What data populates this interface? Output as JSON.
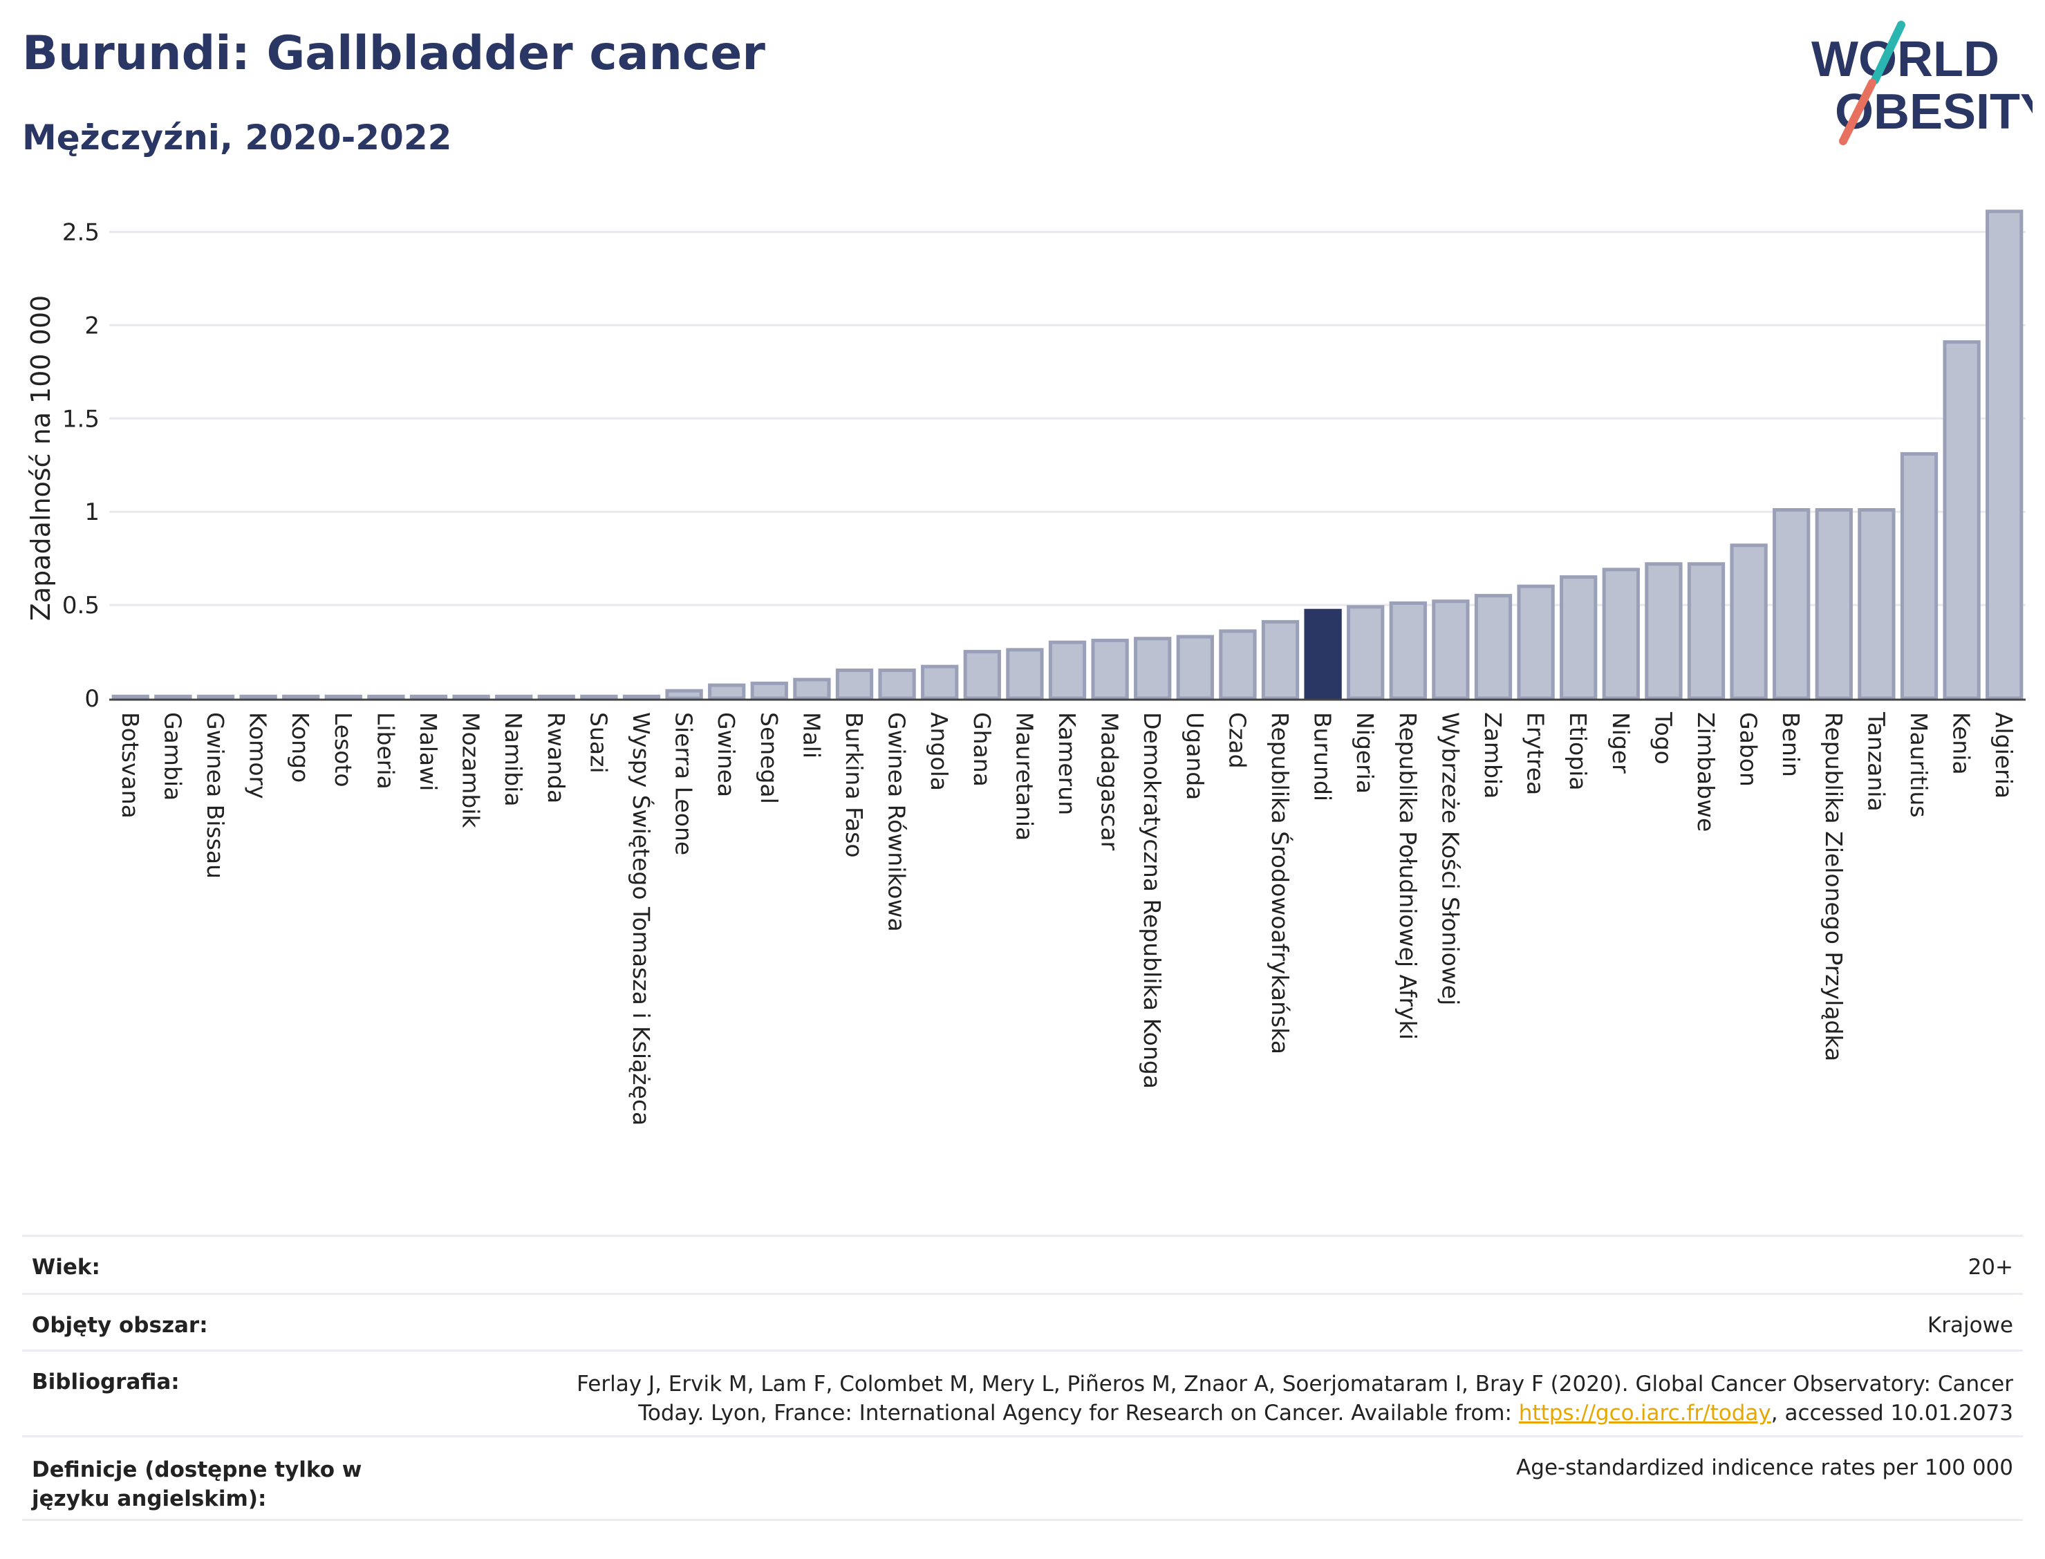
{
  "header": {
    "title": "Burundi: Gallbladder cancer",
    "subtitle": "Mężczyźni, 2020-2022",
    "logo_line1": "WORLD",
    "logo_line2": "OBESITY"
  },
  "colors": {
    "title": "#2a3663",
    "bar": "#bcc1d1",
    "bar_stroke": "#9aa0b8",
    "highlight": "#2a3663",
    "logo_teal": "#2bb5b0",
    "logo_coral": "#e8705f"
  },
  "chart_data": {
    "type": "bar",
    "ylabel": "Zapadalność na 100 000",
    "ylim": [
      0,
      2.65
    ],
    "yticks": [
      0,
      0.5,
      1,
      1.5,
      2,
      2.5
    ],
    "ytick_labels": [
      "0",
      "0.5",
      "1",
      "1.5",
      "2",
      "2.5"
    ],
    "grid": true,
    "highlight": "Burundi",
    "categories": [
      "Botsvana",
      "Gambia",
      "Gwinea Bissau",
      "Komory",
      "Kongo",
      "Lesoto",
      "Liberia",
      "Malawi",
      "Mozambik",
      "Namibia",
      "Rwanda",
      "Suazi",
      "Wyspy Świętego Tomasza i Książęca",
      "Sierra Leone",
      "Gwinea",
      "Senegal",
      "Mali",
      "Burkina Faso",
      "Gwinea Równikowa",
      "Angola",
      "Ghana",
      "Mauretania",
      "Kamerun",
      "Madagascar",
      "Demokratyczna Republika Konga",
      "Uganda",
      "Czad",
      "Republika Środowoafrykańska",
      "Burundi",
      "Nigeria",
      "Republika Południowej Afryki",
      "Wybrzeże Kości Słoniowej",
      "Zambia",
      "Erytrea",
      "Etiopia",
      "Niger",
      "Togo",
      "Zimbabwe",
      "Gabon",
      "Benin",
      "Republika Zielonego Przylądka",
      "Tanzania",
      "Mauritius",
      "Kenia",
      "Algieria"
    ],
    "values": [
      0.01,
      0.01,
      0.01,
      0.01,
      0.01,
      0.01,
      0.01,
      0.01,
      0.01,
      0.01,
      0.01,
      0.01,
      0.01,
      0.04,
      0.07,
      0.08,
      0.1,
      0.15,
      0.15,
      0.17,
      0.25,
      0.26,
      0.3,
      0.31,
      0.32,
      0.33,
      0.36,
      0.41,
      0.47,
      0.49,
      0.51,
      0.52,
      0.55,
      0.6,
      0.65,
      0.69,
      0.72,
      0.72,
      0.82,
      1.01,
      1.01,
      1.01,
      1.31,
      1.91,
      2.61
    ]
  },
  "info": {
    "age_label": "Wiek:",
    "age_value": "20+",
    "area_label": "Objęty obszar:",
    "area_value": "Krajowe",
    "biblio_label": "Bibliografia:",
    "biblio_text1": "Ferlay J, Ervik M, Lam F, Colombet M, Mery L, Piñeros M, Znaor A, Soerjomataram I, Bray F (2020). Global Cancer Observatory: Cancer",
    "biblio_text2": "Today. Lyon, France: International Agency for Research on Cancer. Available from: ",
    "biblio_link": "https://gco.iarc.fr/today",
    "biblio_text3": ", accessed 10.01.2073",
    "def_label": "Definicje (dostępne tylko w języku angielskim):",
    "def_value": "Age-standardized indicence rates per 100 000"
  }
}
